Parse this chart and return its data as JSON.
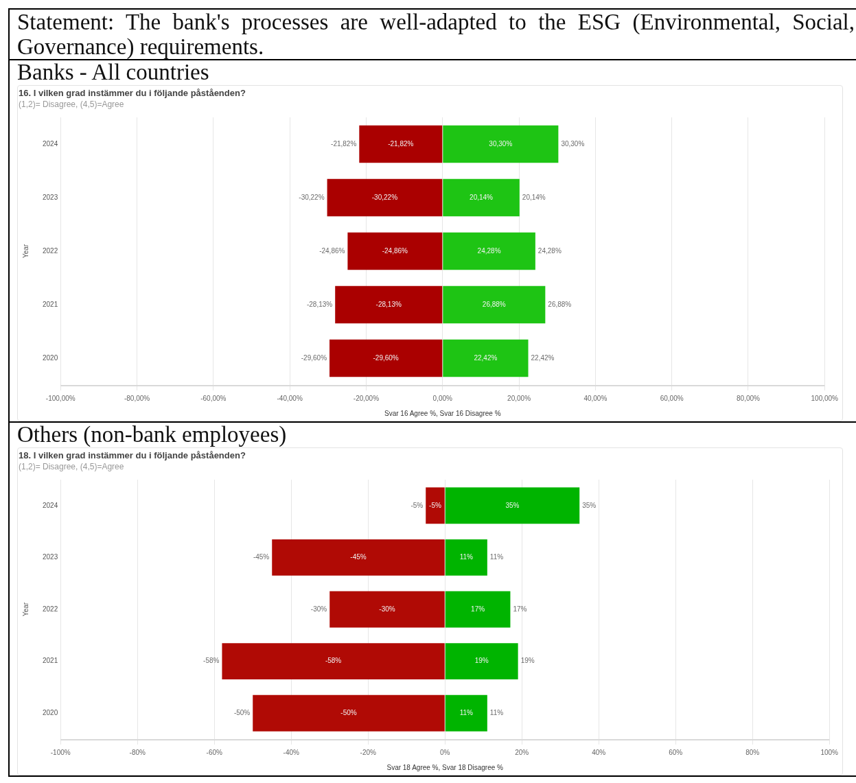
{
  "chart_data": [
    {
      "type": "other",
      "title": "Statement: The bank's processes are well-adapted to the ESG (Environmental, Social, Governance) requirements."
    },
    {
      "type": "bar",
      "title": "Banks - All countries",
      "subtitle": "16. I vilken grad instämmer du i följande påståenden?",
      "annotations": [
        "(1,2)= Disagree, (4,5)=Agree"
      ],
      "orientation": "horizontal",
      "stacked": true,
      "legend": false,
      "grid": "x",
      "xlabel": "Svar 16 Agree %, Svar 16 Disagree %",
      "ylabel": "Year",
      "categories": [
        "2024",
        "2023",
        "2022",
        "2021",
        "2020"
      ],
      "series": [
        {
          "color": "#aa0000",
          "values": [
            -21.82,
            -30.22,
            -24.86,
            -28.13,
            -29.6
          ],
          "value_labels": [
            "-21,82%",
            "-30,22%",
            "-24,86%",
            "-28,13%",
            "-29,60%"
          ]
        },
        {
          "color": "#1ec414",
          "values": [
            30.3,
            20.14,
            24.28,
            26.88,
            22.42
          ],
          "value_labels": [
            "30,30%",
            "20,14%",
            "24,28%",
            "26,88%",
            "22,42%"
          ]
        }
      ],
      "xlim": [
        -100,
        100
      ],
      "xticks": [
        {
          "value": -100,
          "label": "-100,00%"
        },
        {
          "value": -80,
          "label": "-80,00%"
        },
        {
          "value": -60,
          "label": "-60,00%"
        },
        {
          "value": -40,
          "label": "-40,00%"
        },
        {
          "value": -20,
          "label": "-20,00%"
        },
        {
          "value": 0,
          "label": "0,00%"
        },
        {
          "value": 20,
          "label": "20,00%"
        },
        {
          "value": 40,
          "label": "40,00%"
        },
        {
          "value": 60,
          "label": "60,00%"
        },
        {
          "value": 80,
          "label": "80,00%"
        },
        {
          "value": 100,
          "label": "100,00%"
        }
      ]
    },
    {
      "type": "bar",
      "title": "Others (non-bank employees)",
      "subtitle": "18. I vilken grad instämmer du i följande påståenden?",
      "annotations": [
        "(1,2)= Disagree, (4,5)=Agree"
      ],
      "orientation": "horizontal",
      "stacked": true,
      "legend": false,
      "grid": "x",
      "xlabel": "Svar 18 Agree %, Svar 18 Disagree %",
      "ylabel": "Year",
      "categories": [
        "2024",
        "2023",
        "2022",
        "2021",
        "2020"
      ],
      "series": [
        {
          "color": "#b00a05",
          "values": [
            -5,
            -45,
            -30,
            -58,
            -50
          ],
          "value_labels": [
            "-5%",
            "-45%",
            "-30%",
            "-58%",
            "-50%"
          ]
        },
        {
          "color": "#00b400",
          "values": [
            35,
            11,
            17,
            19,
            11
          ],
          "value_labels": [
            "35%",
            "11%",
            "17%",
            "19%",
            "11%"
          ]
        }
      ],
      "xlim": [
        -100,
        100
      ],
      "xticks": [
        {
          "value": -100,
          "label": "-100%"
        },
        {
          "value": -80,
          "label": "-80%"
        },
        {
          "value": -60,
          "label": "-60%"
        },
        {
          "value": -40,
          "label": "-40%"
        },
        {
          "value": -20,
          "label": "-20%"
        },
        {
          "value": 0,
          "label": "0%"
        },
        {
          "value": 20,
          "label": "20%"
        },
        {
          "value": 40,
          "label": "40%"
        },
        {
          "value": 60,
          "label": "60%"
        },
        {
          "value": 80,
          "label": "80%"
        },
        {
          "value": 100,
          "label": "100%"
        }
      ]
    }
  ]
}
